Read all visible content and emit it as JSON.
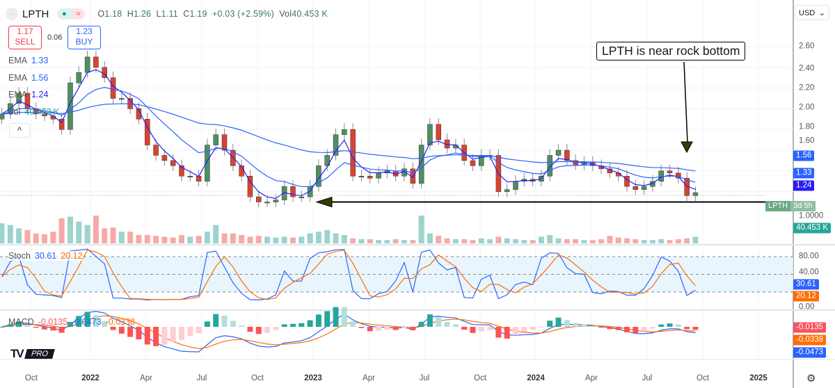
{
  "header": {
    "symbol": "LPTH",
    "symbol_icon": "dotted-line-icon",
    "status_icons": [
      "market-open-dot-icon",
      "delayed-data-icon"
    ],
    "ohlc": {
      "o_label": "O",
      "o": "1.18",
      "h_label": "H",
      "h": "1.26",
      "l_label": "L",
      "l": "1.11",
      "c_label": "C",
      "c": "1.19",
      "change": "+0.03 (+2.59%)",
      "vol_label": "Vol",
      "vol": "40.453 K"
    }
  },
  "trade": {
    "sell_price": "1.17",
    "sell_label": "SELL",
    "spread": "0.06",
    "buy_price": "1.23",
    "buy_label": "BUY"
  },
  "legend": [
    {
      "label": "EMA",
      "value": "1.33"
    },
    {
      "label": "EMA",
      "value": "1.56"
    },
    {
      "label": "EMA",
      "value": "1.24"
    },
    {
      "label": "Vol",
      "value": "40.453 K"
    }
  ],
  "collapse_label": "^",
  "currency": "USD",
  "annotation": "LPTH is near rock bottom",
  "symbol_tag": {
    "symbol": "LPTH",
    "countdown": "3d 5h"
  },
  "price_axis": [
    "2.60",
    "2.40",
    "2.20",
    "2.00",
    "1.80",
    "1.60",
    "1.0000"
  ],
  "price_badges": [
    {
      "value": "1.56",
      "color": "#2962ff"
    },
    {
      "value": "1.33",
      "color": "#2962ff"
    },
    {
      "value": "1.24",
      "color": "#2a1df2"
    },
    {
      "value": "40.453 K",
      "color": "#26a69a"
    }
  ],
  "stoch": {
    "label": "Stoch",
    "k": "30.61",
    "d": "20.12",
    "axis": [
      "80.00",
      "40.00",
      "0.00"
    ],
    "k_color": "#2962ff",
    "d_color": "#ff6d00"
  },
  "macd": {
    "label": "MACD",
    "hist": "-0.0135",
    "macd": "-0.0473",
    "signal": "-0.0338",
    "hist_color": "#f7525f",
    "macd_color": "#2962ff",
    "signal_color": "#ff6d00"
  },
  "time_axis": [
    "Oct",
    "2022",
    "Apr",
    "Jul",
    "Oct",
    "2023",
    "Apr",
    "Jul",
    "Oct",
    "2024",
    "Apr",
    "Jul",
    "Oct",
    "2025"
  ],
  "logo": "PRO",
  "chart_data": {
    "type": "candlestick",
    "x": [
      "2021-08-09",
      "2021-08-23",
      "2021-09-06",
      "2021-09-20",
      "2021-10-04",
      "2021-10-18",
      "2021-11-01",
      "2021-11-15",
      "2021-11-29",
      "2021-12-13",
      "2021-12-27",
      "2022-01-10",
      "2022-01-24",
      "2022-02-07",
      "2022-02-21",
      "2022-03-07",
      "2022-03-21",
      "2022-04-04",
      "2022-04-18",
      "2022-05-02",
      "2022-05-16",
      "2022-05-30",
      "2022-06-13",
      "2022-06-27",
      "2022-07-11",
      "2022-07-25",
      "2022-08-08",
      "2022-08-22",
      "2022-09-05",
      "2022-09-19",
      "2022-10-03",
      "2022-10-17",
      "2022-10-31",
      "2022-11-14",
      "2022-11-28",
      "2022-12-12",
      "2022-12-26",
      "2023-01-09",
      "2023-01-23",
      "2023-02-06",
      "2023-02-20",
      "2023-03-06",
      "2023-03-20",
      "2023-04-03",
      "2023-04-17",
      "2023-05-01",
      "2023-05-15",
      "2023-05-29",
      "2023-06-12",
      "2023-06-26",
      "2023-07-10",
      "2023-07-24",
      "2023-08-07",
      "2023-08-21",
      "2023-09-04",
      "2023-09-18",
      "2023-10-02",
      "2023-10-16",
      "2023-10-30",
      "2023-11-13",
      "2023-11-27",
      "2023-12-11",
      "2023-12-25",
      "2024-01-08",
      "2024-01-22",
      "2024-02-05",
      "2024-02-19",
      "2024-03-04",
      "2024-03-18",
      "2024-04-01",
      "2024-04-15",
      "2024-04-29",
      "2024-05-13",
      "2024-05-27",
      "2024-06-10",
      "2024-06-24",
      "2024-07-08",
      "2024-07-22",
      "2024-08-05",
      "2024-08-19",
      "2024-09-02",
      "2024-09-16"
    ],
    "close": [
      1.95,
      2.05,
      2.15,
      2.0,
      1.95,
      1.93,
      1.9,
      1.8,
      2.25,
      2.35,
      2.5,
      2.4,
      2.3,
      2.1,
      2.1,
      2.0,
      1.9,
      1.65,
      1.55,
      1.5,
      1.45,
      1.35,
      1.35,
      1.3,
      1.65,
      1.75,
      1.6,
      1.45,
      1.35,
      1.15,
      1.1,
      1.1,
      1.12,
      1.25,
      1.15,
      1.15,
      1.25,
      1.45,
      1.55,
      1.75,
      1.8,
      1.35,
      1.35,
      1.33,
      1.38,
      1.4,
      1.35,
      1.42,
      1.28,
      1.65,
      1.85,
      1.7,
      1.62,
      1.65,
      1.5,
      1.45,
      1.55,
      1.55,
      1.2,
      1.22,
      1.3,
      1.32,
      1.3,
      1.35,
      1.55,
      1.6,
      1.5,
      1.46,
      1.48,
      1.45,
      1.42,
      1.38,
      1.35,
      1.25,
      1.22,
      1.25,
      1.3,
      1.4,
      1.38,
      1.33,
      1.16,
      1.19
    ],
    "volume_k": [
      120,
      110,
      90,
      80,
      60,
      55,
      70,
      150,
      160,
      130,
      110,
      170,
      90,
      95,
      70,
      70,
      50,
      50,
      45,
      40,
      35,
      50,
      40,
      45,
      70,
      110,
      60,
      60,
      50,
      40,
      45,
      40,
      35,
      40,
      35,
      40,
      60,
      70,
      80,
      60,
      50,
      30,
      25,
      25,
      20,
      20,
      25,
      20,
      20,
      500,
      60,
      45,
      30,
      25,
      25,
      20,
      30,
      25,
      40,
      30,
      25,
      20,
      20,
      40,
      50,
      30,
      25,
      25,
      20,
      20,
      25,
      45,
      35,
      30,
      25,
      20,
      20,
      25,
      20,
      25,
      30,
      40
    ],
    "ylim": [
      1.0,
      2.7
    ],
    "support_line": 1.12,
    "grid": true
  }
}
